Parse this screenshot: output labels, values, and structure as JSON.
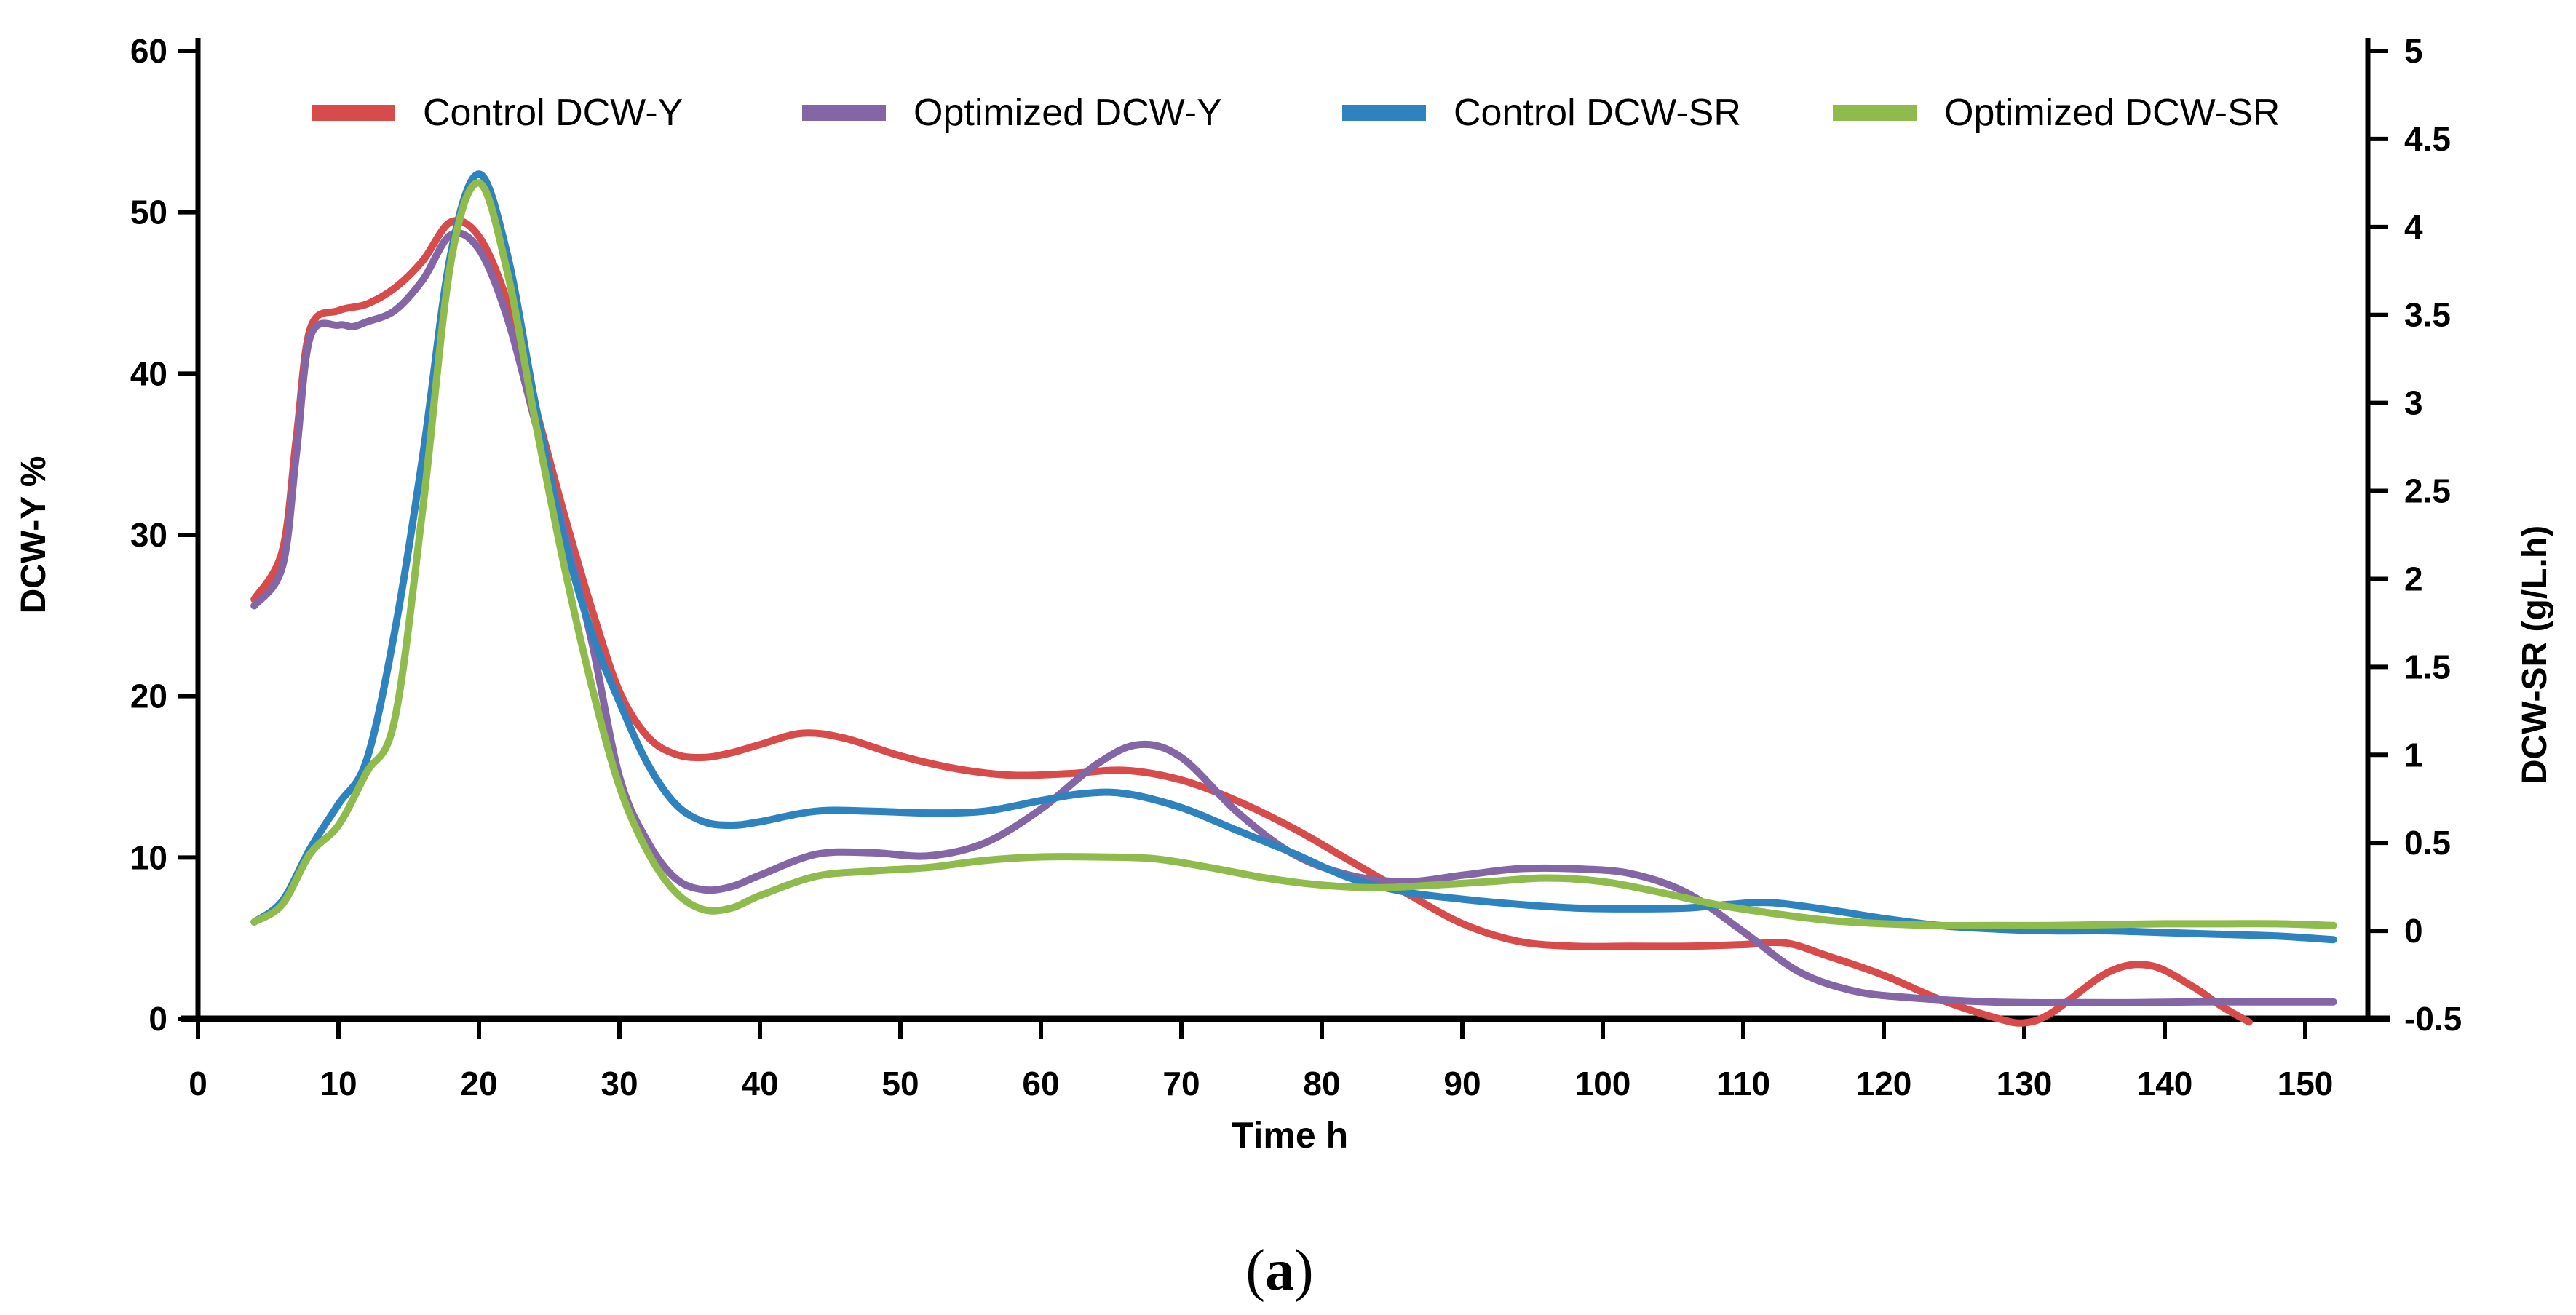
{
  "figure": {
    "caption_open": "(",
    "caption_letter": "a",
    "caption_close": ")"
  },
  "chart_data": {
    "type": "line",
    "title": "",
    "xlabel": "Time h",
    "ylabel_left": "DCW-Y %",
    "ylabel_right": "DCW-SR (g/L.h)",
    "grid": false,
    "legend_position": "top",
    "xlim": [
      0,
      154
    ],
    "x_ticks": [
      0,
      10,
      20,
      30,
      40,
      50,
      60,
      70,
      80,
      90,
      100,
      110,
      120,
      130,
      140,
      150
    ],
    "ylim_left": [
      0,
      60
    ],
    "yticks_left": [
      0,
      10,
      20,
      30,
      40,
      50,
      60
    ],
    "ylim_right": [
      -0.5,
      5
    ],
    "yticks_right": [
      -0.5,
      0,
      0.5,
      1,
      1.5,
      2,
      2.5,
      3,
      3.5,
      4,
      4.5,
      5
    ],
    "axis_color": "#000000",
    "series": [
      {
        "name": "Control DCW-Y",
        "slug": "control-dcw-y",
        "axis": "left",
        "color": "#D84B4B",
        "x": [
          4,
          6,
          7,
          8,
          10,
          12,
          14,
          16,
          18,
          20,
          22,
          24,
          26,
          28,
          30,
          32,
          34,
          36,
          38,
          40,
          43,
          46,
          50,
          54,
          58,
          62,
          66,
          70,
          74,
          78,
          82,
          86,
          90,
          94,
          98,
          102,
          106,
          110,
          113,
          116,
          120,
          124,
          128,
          130,
          132,
          136,
          139,
          142,
          144,
          146
        ],
        "values": [
          26,
          29,
          36,
          42.8,
          43.9,
          44.3,
          45.3,
          47,
          49.4,
          48.5,
          44.5,
          38,
          31.5,
          25.5,
          20.3,
          17.5,
          16.4,
          16.2,
          16.5,
          17,
          17.7,
          17.4,
          16.3,
          15.5,
          15.1,
          15.2,
          15.4,
          14.8,
          13.5,
          11.8,
          9.8,
          7.8,
          5.9,
          4.8,
          4.5,
          4.5,
          4.5,
          4.6,
          4.7,
          3.9,
          2.7,
          1.2,
          0.05,
          -0.25,
          0.4,
          2.9,
          3.3,
          2,
          0.8,
          -0.2
        ]
      },
      {
        "name": "Optimized DCW-Y",
        "slug": "optimized-dcw-y",
        "axis": "left",
        "color": "#8465A5",
        "x": [
          4,
          6,
          7,
          8,
          10,
          11,
          12,
          14,
          16,
          18,
          20,
          22,
          24,
          26,
          28,
          30,
          32,
          34,
          36,
          38,
          40,
          44,
          48,
          52,
          56,
          60,
          64,
          67,
          70,
          74,
          78,
          82,
          86,
          90,
          94,
          98,
          102,
          106,
          110,
          114,
          118,
          122,
          126,
          130,
          134,
          138,
          142,
          146,
          149,
          152
        ],
        "values": [
          25.6,
          28,
          35,
          42.3,
          43,
          42.9,
          43.2,
          43.9,
          45.8,
          48.6,
          47.7,
          43.5,
          37,
          30.5,
          23.5,
          15,
          11,
          8.7,
          8,
          8.2,
          8.9,
          10.2,
          10.3,
          10.1,
          10.9,
          13,
          15.8,
          17,
          16.2,
          12.8,
          10.2,
          8.9,
          8.5,
          8.9,
          9.3,
          9.3,
          9,
          7.8,
          5.4,
          2.9,
          1.7,
          1.3,
          1.1,
          1,
          1,
          1,
          1.05,
          1.05,
          1.05,
          1.05
        ]
      },
      {
        "name": "Control DCW-SR",
        "slug": "control-dcw-sr",
        "axis": "right",
        "color": "#2E83BF",
        "x": [
          4,
          6,
          8,
          10,
          12,
          14,
          16,
          18,
          20,
          22,
          24,
          26,
          28,
          30,
          32,
          34,
          36,
          38,
          40,
          44,
          48,
          52,
          56,
          60,
          63,
          66,
          70,
          74,
          78,
          82,
          86,
          90,
          94,
          98,
          102,
          106,
          109,
          112,
          116,
          120,
          124,
          128,
          132,
          136,
          140,
          144,
          148,
          152
        ],
        "values": [
          0.05,
          0.17,
          0.47,
          0.72,
          0.97,
          1.7,
          2.7,
          3.85,
          4.3,
          3.85,
          3,
          2.25,
          1.7,
          1.3,
          0.95,
          0.72,
          0.62,
          0.6,
          0.62,
          0.68,
          0.68,
          0.67,
          0.68,
          0.74,
          0.78,
          0.78,
          0.7,
          0.57,
          0.44,
          0.3,
          0.22,
          0.18,
          0.15,
          0.13,
          0.125,
          0.13,
          0.15,
          0.16,
          0.12,
          0.07,
          0.03,
          0.01,
          0,
          0,
          -0.01,
          -0.02,
          -0.03,
          -0.05
        ]
      },
      {
        "name": "Optimized DCW-SR",
        "slug": "optimized-dcw-sr",
        "axis": "right",
        "color": "#8FBB4C",
        "x": [
          4,
          6,
          8,
          10,
          12,
          14,
          16,
          18,
          20,
          22,
          24,
          26,
          28,
          30,
          32,
          34,
          36,
          38,
          40,
          44,
          48,
          52,
          56,
          60,
          64,
          68,
          72,
          76,
          80,
          84,
          88,
          92,
          96,
          100,
          104,
          108,
          112,
          116,
          120,
          124,
          128,
          132,
          136,
          140,
          144,
          148,
          152
        ],
        "values": [
          0.05,
          0.15,
          0.44,
          0.6,
          0.9,
          1.2,
          2.4,
          3.8,
          4.25,
          3.75,
          2.9,
          2.1,
          1.4,
          0.82,
          0.45,
          0.22,
          0.12,
          0.13,
          0.2,
          0.31,
          0.34,
          0.36,
          0.4,
          0.42,
          0.42,
          0.41,
          0.36,
          0.3,
          0.26,
          0.245,
          0.26,
          0.28,
          0.3,
          0.28,
          0.22,
          0.15,
          0.1,
          0.06,
          0.04,
          0.03,
          0.03,
          0.03,
          0.035,
          0.04,
          0.04,
          0.04,
          0.03
        ]
      }
    ]
  }
}
